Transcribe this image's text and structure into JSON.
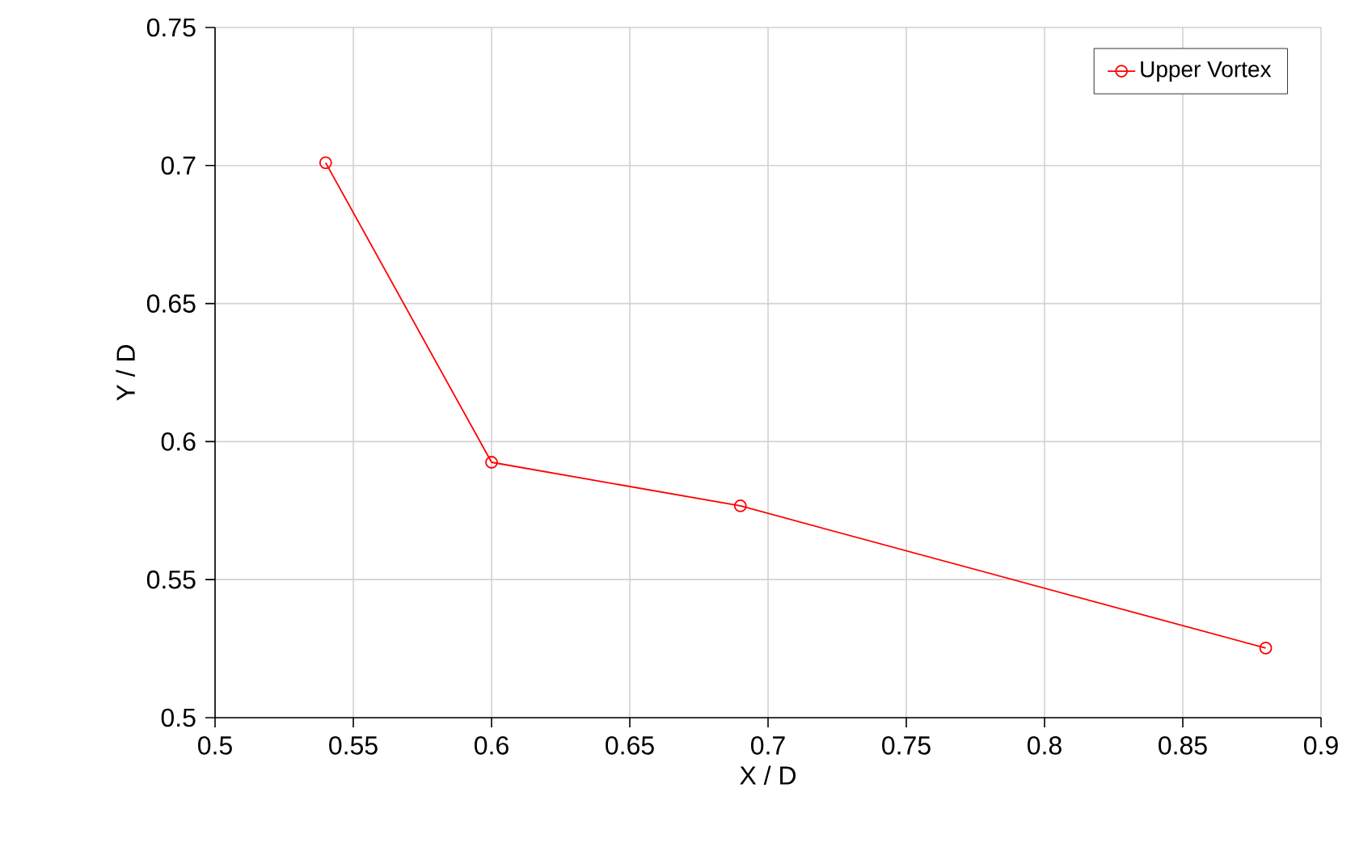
{
  "chart_data": {
    "type": "line",
    "xlabel": "X / D",
    "ylabel": "Y / D",
    "x": [
      0.54,
      0.6,
      0.69,
      0.88
    ],
    "series": [
      {
        "name": "Upper Vortex",
        "color": "#ff0000",
        "values": [
          0.701,
          0.5925,
          0.5767,
          0.5252
        ]
      }
    ],
    "xlim": [
      0.5,
      0.9
    ],
    "xticks": [
      0.5,
      0.55,
      0.6,
      0.65,
      0.7,
      0.75,
      0.8,
      0.85,
      0.9
    ],
    "ylim": [
      0.5,
      0.75
    ],
    "yticks": [
      0.5,
      0.55,
      0.6,
      0.65,
      0.7,
      0.75
    ],
    "grid": true,
    "legend": "top right",
    "marker": "circle",
    "line_style": "solid"
  }
}
